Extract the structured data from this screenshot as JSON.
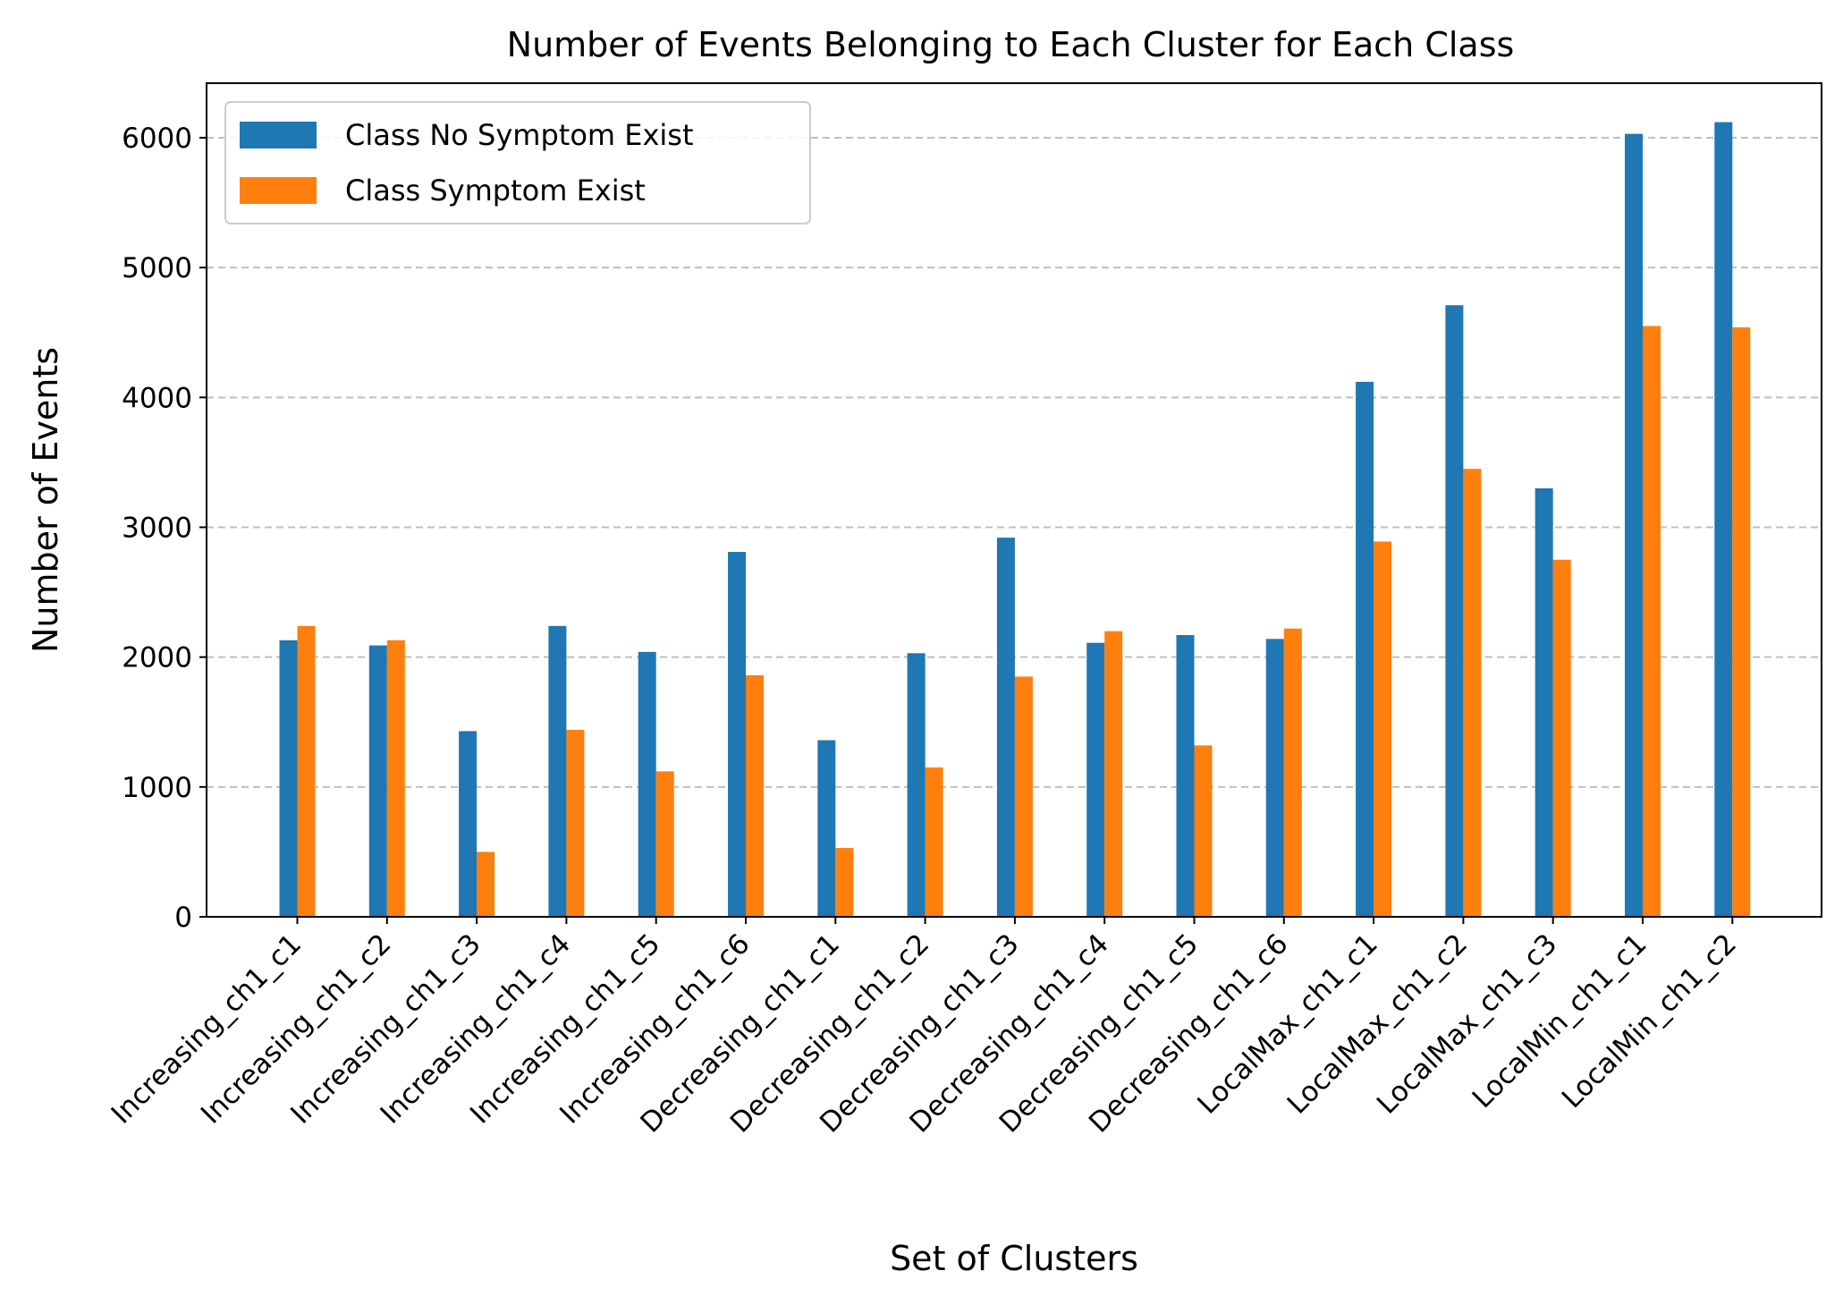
{
  "chart_data": {
    "type": "bar",
    "title": "Number of Events Belonging to Each Cluster for Each Class",
    "xlabel": "Set of Clusters",
    "ylabel": "Number of Events",
    "ylim": [
      0,
      6420
    ],
    "yticks": [
      0,
      1000,
      2000,
      3000,
      4000,
      5000,
      6000
    ],
    "grid": "y-dashed",
    "legend": "top-left",
    "categories": [
      "Increasing_ch1_c1",
      "Increasing_ch1_c2",
      "Increasing_ch1_c3",
      "Increasing_ch1_c4",
      "Increasing_ch1_c5",
      "Increasing_ch1_c6",
      "Decreasing_ch1_c1",
      "Decreasing_ch1_c2",
      "Decreasing_ch1_c3",
      "Decreasing_ch1_c4",
      "Decreasing_ch1_c5",
      "Decreasing_ch1_c6",
      "LocalMax_ch1_c1",
      "LocalMax_ch1_c2",
      "LocalMax_ch1_c3",
      "LocalMin_ch1_c1",
      "LocalMin_ch1_c2"
    ],
    "series": [
      {
        "name": "Class No Symptom Exist",
        "color": "#1f77b4",
        "values": [
          2130,
          2090,
          1430,
          2240,
          2040,
          2810,
          1360,
          2030,
          2920,
          2110,
          2170,
          2140,
          4120,
          4710,
          3300,
          6030,
          6120
        ]
      },
      {
        "name": "Class Symptom Exist",
        "color": "#ff7f0e",
        "values": [
          2240,
          2130,
          500,
          1440,
          1120,
          1860,
          530,
          1150,
          1850,
          2200,
          1320,
          2220,
          2890,
          3450,
          2750,
          4550,
          4540
        ]
      }
    ]
  }
}
